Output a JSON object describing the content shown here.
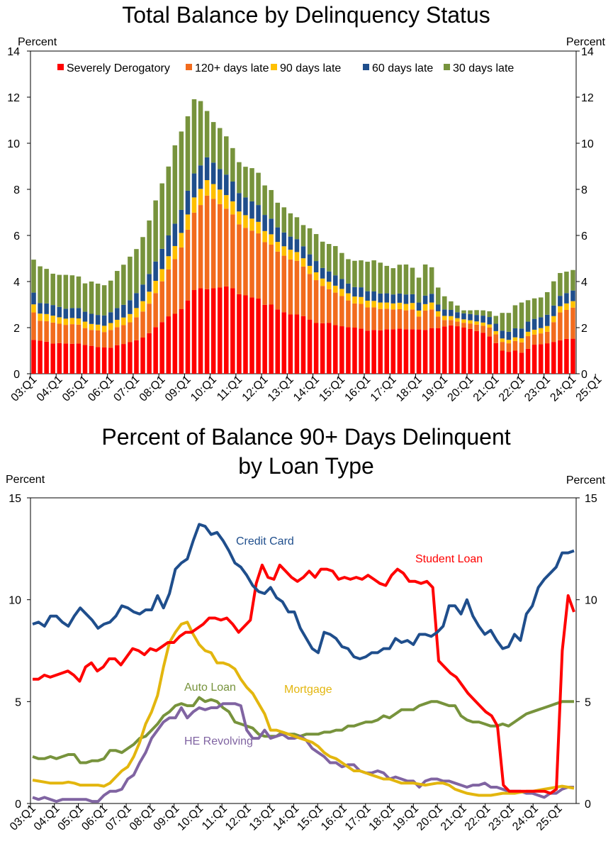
{
  "chart_data": [
    {
      "type": "bar",
      "stacked": true,
      "title": "Total Balance by Delinquency Status",
      "ylabel_left": "Percent",
      "ylabel_right": "Percent",
      "ylim": [
        0,
        14
      ],
      "yticks": [
        0,
        2,
        4,
        6,
        8,
        10,
        12,
        14
      ],
      "xtick_labels": [
        "03:Q1",
        "04:Q1",
        "05:Q1",
        "06:Q1",
        "07:Q1",
        "08:Q1",
        "09:Q1",
        "10:Q1",
        "11:Q1",
        "12:Q1",
        "13:Q1",
        "14:Q1",
        "15:Q1",
        "16:Q1",
        "17:Q1",
        "18:Q1",
        "19:Q1",
        "20:Q1",
        "21:Q1",
        "22:Q1",
        "23:Q1",
        "24:Q1",
        "25:Q1"
      ],
      "legend_position": "top",
      "series": [
        {
          "name": "Severely Derogatory",
          "color": "#ff0000"
        },
        {
          "name": "120+ days late",
          "color": "#f26b1d"
        },
        {
          "name": "90 days late",
          "color": "#ffc000"
        },
        {
          "name": "60 days late",
          "color": "#1f4e8c"
        },
        {
          "name": "30 days late",
          "color": "#77933c"
        }
      ],
      "totals": [
        4.95,
        4.66,
        4.55,
        4.34,
        4.29,
        4.29,
        4.27,
        4.22,
        3.92,
        4.0,
        3.91,
        3.84,
        4.04,
        4.46,
        4.73,
        5.08,
        5.41,
        5.93,
        6.65,
        7.52,
        8.26,
        8.99,
        9.91,
        10.51,
        11.17,
        11.91,
        11.83,
        11.4,
        10.92,
        10.66,
        10.3,
        9.79,
        9.18,
        8.98,
        8.92,
        8.72,
        8.17,
        7.97,
        7.42,
        7.22,
        6.96,
        6.79,
        6.45,
        6.31,
        6.06,
        5.73,
        5.63,
        5.54,
        5.24,
        4.97,
        4.9,
        4.92,
        4.86,
        4.92,
        4.82,
        4.68,
        4.58,
        4.73,
        4.74,
        4.6,
        4.17,
        4.74,
        4.62,
        3.74,
        3.36,
        3.14,
        2.96,
        2.75,
        2.75,
        2.76,
        2.75,
        2.71,
        2.51,
        2.64,
        2.64,
        2.97,
        3.09,
        3.19,
        3.27,
        3.31,
        3.54,
        4.01,
        4.37,
        4.43,
        4.5
      ],
      "severe": [
        1.47,
        1.43,
        1.39,
        1.31,
        1.33,
        1.31,
        1.3,
        1.31,
        1.25,
        1.21,
        1.16,
        1.14,
        1.13,
        1.24,
        1.29,
        1.37,
        1.45,
        1.57,
        1.76,
        2.02,
        2.24,
        2.49,
        2.6,
        2.8,
        3.18,
        3.63,
        3.71,
        3.67,
        3.71,
        3.74,
        3.79,
        3.71,
        3.45,
        3.4,
        3.31,
        3.26,
        2.99,
        3.0,
        2.79,
        2.67,
        2.57,
        2.57,
        2.5,
        2.35,
        2.2,
        2.19,
        2.21,
        2.11,
        2.06,
        2.02,
        2.0,
        1.96,
        1.87,
        1.9,
        1.88,
        1.93,
        1.93,
        1.96,
        1.93,
        1.93,
        1.92,
        1.9,
        1.98,
        1.98,
        2.05,
        2.1,
        2.06,
        2.0,
        1.94,
        1.85,
        1.78,
        1.62,
        1.33,
        1.0,
        0.95,
        1.0,
        0.91,
        1.08,
        1.26,
        1.28,
        1.32,
        1.38,
        1.45,
        1.51,
        1.52
      ],
      "days120": [
        1.19,
        0.87,
        0.89,
        0.91,
        0.84,
        0.81,
        0.85,
        0.82,
        0.73,
        0.69,
        0.72,
        0.67,
        0.77,
        0.78,
        0.82,
        0.86,
        1.0,
        1.13,
        1.28,
        1.48,
        1.77,
        2.04,
        2.37,
        2.68,
        3.07,
        3.36,
        3.61,
        4.06,
        3.88,
        3.62,
        3.37,
        3.2,
        3.03,
        2.93,
        2.9,
        2.83,
        2.72,
        2.6,
        2.51,
        2.45,
        2.39,
        2.33,
        2.15,
        1.98,
        1.86,
        1.62,
        1.46,
        1.41,
        1.31,
        1.16,
        1.05,
        1.07,
        1.01,
        0.98,
        0.93,
        0.89,
        0.86,
        0.84,
        0.82,
        0.86,
        0.56,
        0.84,
        0.81,
        0.5,
        0.28,
        0.23,
        0.2,
        0.21,
        0.24,
        0.28,
        0.3,
        0.38,
        0.38,
        0.38,
        0.37,
        0.42,
        0.45,
        0.55,
        0.44,
        0.47,
        0.5,
        0.86,
        1.21,
        1.26,
        1.35
      ],
      "days90": [
        0.35,
        0.31,
        0.31,
        0.3,
        0.28,
        0.27,
        0.27,
        0.27,
        0.28,
        0.26,
        0.25,
        0.27,
        0.3,
        0.32,
        0.33,
        0.36,
        0.4,
        0.45,
        0.52,
        0.53,
        0.53,
        0.57,
        0.57,
        0.63,
        0.66,
        0.66,
        0.7,
        0.67,
        0.64,
        0.63,
        0.59,
        0.57,
        0.56,
        0.55,
        0.52,
        0.5,
        0.48,
        0.45,
        0.42,
        0.41,
        0.42,
        0.38,
        0.36,
        0.35,
        0.34,
        0.32,
        0.32,
        0.3,
        0.31,
        0.31,
        0.3,
        0.3,
        0.29,
        0.28,
        0.28,
        0.27,
        0.26,
        0.28,
        0.28,
        0.28,
        0.26,
        0.28,
        0.3,
        0.23,
        0.18,
        0.17,
        0.15,
        0.15,
        0.14,
        0.14,
        0.14,
        0.14,
        0.14,
        0.15,
        0.15,
        0.16,
        0.18,
        0.19,
        0.21,
        0.23,
        0.25,
        0.26,
        0.27,
        0.28,
        0.28
      ],
      "days60": [
        0.51,
        0.46,
        0.46,
        0.46,
        0.45,
        0.43,
        0.43,
        0.45,
        0.43,
        0.44,
        0.42,
        0.45,
        0.47,
        0.51,
        0.55,
        0.6,
        0.65,
        0.72,
        0.77,
        0.84,
        0.88,
        0.9,
        0.97,
        1.0,
        1.03,
        1.04,
        1.02,
        0.99,
        0.93,
        0.89,
        0.89,
        0.86,
        0.8,
        0.77,
        0.75,
        0.73,
        0.7,
        0.68,
        0.63,
        0.6,
        0.57,
        0.56,
        0.52,
        0.5,
        0.49,
        0.46,
        0.45,
        0.45,
        0.43,
        0.42,
        0.41,
        0.42,
        0.41,
        0.41,
        0.39,
        0.4,
        0.39,
        0.4,
        0.41,
        0.38,
        0.35,
        0.37,
        0.38,
        0.29,
        0.28,
        0.27,
        0.26,
        0.26,
        0.27,
        0.28,
        0.3,
        0.32,
        0.32,
        0.34,
        0.35,
        0.39,
        0.42,
        0.44,
        0.47,
        0.47,
        0.49,
        0.46,
        0.45,
        0.45,
        0.46
      ],
      "chart_plot_note": "30 days late = totals minus other four series"
    },
    {
      "type": "line",
      "title_lines": [
        "Percent of Balance 90+ Days Delinquent",
        "by Loan Type"
      ],
      "ylabel_left": "Percent",
      "ylabel_right": "Percent",
      "ylim": [
        0,
        15
      ],
      "yticks": [
        0,
        5,
        10,
        15
      ],
      "xtick_labels": [
        "03:Q1",
        "04:Q1",
        "05:Q1",
        "06:Q1",
        "07:Q1",
        "08:Q1",
        "09:Q1",
        "10:Q1",
        "11:Q1",
        "12:Q1",
        "13:Q1",
        "14:Q1",
        "15:Q1",
        "16:Q1",
        "17:Q1",
        "18:Q1",
        "19:Q1",
        "20:Q1",
        "21:Q1",
        "22:Q1",
        "23:Q1",
        "24:Q1",
        "25:Q1"
      ],
      "series": [
        {
          "name": "Credit Card",
          "color": "#1f4e8c",
          "values": [
            8.8,
            8.9,
            8.7,
            9.2,
            9.2,
            8.9,
            8.7,
            9.2,
            9.6,
            9.3,
            9.0,
            8.6,
            8.8,
            8.9,
            9.2,
            9.7,
            9.6,
            9.4,
            9.3,
            9.5,
            9.5,
            10.2,
            9.6,
            10.3,
            11.5,
            11.8,
            12.0,
            12.9,
            13.7,
            13.6,
            13.2,
            13.3,
            12.9,
            12.4,
            11.8,
            11.6,
            11.2,
            10.7,
            10.4,
            10.3,
            10.6,
            10.1,
            9.9,
            9.4,
            9.4,
            8.6,
            8.1,
            7.6,
            7.4,
            8.4,
            8.3,
            8.1,
            7.7,
            7.6,
            7.2,
            7.1,
            7.2,
            7.4,
            7.4,
            7.6,
            7.6,
            8.1,
            7.9,
            8.0,
            7.8,
            8.3,
            8.3,
            8.2,
            8.4,
            8.7,
            9.7,
            9.7,
            9.3,
            10.0,
            9.2,
            8.7,
            8.3,
            8.5,
            8.0,
            7.6,
            7.7,
            8.3,
            8.0,
            9.3,
            9.7,
            10.6,
            11.0,
            11.3,
            11.6,
            12.3,
            12.3,
            12.4
          ]
        },
        {
          "name": "Student Loan",
          "color": "#ff0000",
          "values": [
            6.1,
            6.1,
            6.3,
            6.2,
            6.3,
            6.4,
            6.5,
            6.3,
            6.0,
            6.7,
            6.9,
            6.5,
            6.7,
            7.1,
            7.1,
            6.8,
            7.2,
            7.6,
            7.5,
            7.3,
            7.6,
            7.5,
            7.7,
            7.9,
            7.9,
            8.2,
            8.4,
            8.4,
            8.6,
            8.8,
            9.1,
            9.1,
            9.0,
            9.1,
            8.8,
            8.4,
            8.7,
            9.0,
            10.8,
            11.7,
            11.1,
            11.0,
            11.7,
            11.4,
            11.1,
            10.9,
            11.1,
            11.4,
            11.1,
            11.5,
            11.5,
            11.4,
            11.0,
            11.1,
            11.0,
            11.1,
            11.0,
            11.2,
            11.0,
            10.8,
            10.7,
            11.2,
            11.5,
            11.3,
            10.9,
            10.9,
            10.8,
            10.9,
            10.6,
            7.0,
            6.7,
            6.4,
            6.2,
            5.8,
            5.4,
            5.1,
            4.8,
            4.5,
            4.3,
            3.8,
            0.9,
            0.6,
            0.6,
            0.6,
            0.6,
            0.6,
            0.6,
            0.6,
            0.5,
            0.7,
            7.5,
            10.2,
            9.4
          ]
        },
        {
          "name": "Mortgage",
          "color": "#e3b60e",
          "values": [
            1.15,
            1.1,
            1.05,
            1.0,
            1.0,
            1.0,
            1.05,
            1.0,
            0.9,
            0.9,
            0.9,
            0.9,
            0.85,
            1.0,
            1.3,
            1.6,
            1.8,
            2.3,
            3.0,
            3.9,
            4.5,
            5.3,
            6.7,
            7.9,
            8.4,
            8.8,
            8.9,
            8.3,
            7.8,
            7.5,
            7.4,
            6.9,
            6.9,
            6.8,
            6.6,
            6.1,
            5.7,
            5.4,
            4.9,
            4.4,
            3.6,
            3.6,
            3.5,
            3.4,
            3.3,
            3.2,
            3.1,
            3.0,
            2.8,
            2.5,
            2.3,
            2.2,
            2.0,
            1.8,
            1.6,
            1.6,
            1.5,
            1.4,
            1.3,
            1.2,
            1.2,
            1.1,
            1.0,
            1.0,
            1.0,
            0.95,
            0.9,
            0.95,
            1.0,
            1.0,
            0.9,
            0.7,
            0.6,
            0.5,
            0.45,
            0.4,
            0.4,
            0.4,
            0.45,
            0.5,
            0.5,
            0.5,
            0.55,
            0.6,
            0.6,
            0.65,
            0.7,
            0.75,
            0.8,
            0.85,
            0.8,
            0.75
          ]
        },
        {
          "name": "Auto Loan",
          "color": "#77933c",
          "values": [
            2.3,
            2.2,
            2.2,
            2.3,
            2.2,
            2.3,
            2.4,
            2.4,
            2.0,
            2.0,
            2.1,
            2.1,
            2.2,
            2.6,
            2.6,
            2.5,
            2.7,
            2.9,
            3.2,
            3.3,
            3.6,
            3.9,
            4.3,
            4.5,
            4.8,
            4.9,
            4.8,
            4.8,
            5.2,
            5.0,
            5.1,
            5.0,
            4.7,
            4.5,
            4.0,
            3.9,
            3.8,
            3.7,
            3.4,
            3.3,
            3.3,
            3.3,
            3.5,
            3.4,
            3.4,
            3.3,
            3.4,
            3.4,
            3.4,
            3.5,
            3.5,
            3.6,
            3.6,
            3.8,
            3.8,
            3.9,
            4.0,
            4.0,
            4.1,
            4.3,
            4.2,
            4.4,
            4.6,
            4.6,
            4.6,
            4.8,
            4.9,
            5.0,
            5.0,
            4.9,
            4.8,
            4.8,
            4.3,
            4.1,
            4.0,
            4.0,
            3.9,
            3.8,
            3.8,
            3.9,
            3.8,
            4.0,
            4.2,
            4.4,
            4.5,
            4.6,
            4.7,
            4.8,
            4.9,
            5.0,
            5.0,
            5.0
          ]
        },
        {
          "name": "HE Revolving",
          "color": "#8064a2",
          "values": [
            0.3,
            0.2,
            0.3,
            0.2,
            0.1,
            0.2,
            0.2,
            0.2,
            0.2,
            0.2,
            0.1,
            0.1,
            0.4,
            0.6,
            0.6,
            0.7,
            1.2,
            1.4,
            2.0,
            2.5,
            3.2,
            3.6,
            4.0,
            4.2,
            4.2,
            4.7,
            4.2,
            4.5,
            4.7,
            4.6,
            4.7,
            4.7,
            4.9,
            4.9,
            4.9,
            4.8,
            3.6,
            3.2,
            3.2,
            3.6,
            3.2,
            3.3,
            3.4,
            3.2,
            3.2,
            3.3,
            3.1,
            2.7,
            2.5,
            2.3,
            2.0,
            2.0,
            1.8,
            1.9,
            1.9,
            1.6,
            1.5,
            1.5,
            1.6,
            1.5,
            1.2,
            1.3,
            1.2,
            1.1,
            1.1,
            0.8,
            1.1,
            1.2,
            1.2,
            1.1,
            1.1,
            1.0,
            0.9,
            0.8,
            0.9,
            0.9,
            1.0,
            0.8,
            0.8,
            0.7,
            0.6,
            0.6,
            0.6,
            0.5,
            0.5,
            0.4,
            0.3,
            0.5,
            0.5,
            0.7,
            0.8,
            0.8
          ]
        }
      ],
      "annotations": [
        "Credit Card",
        "Student Loan",
        "Auto Loan",
        "Mortgage",
        "HE Revolving"
      ]
    }
  ]
}
